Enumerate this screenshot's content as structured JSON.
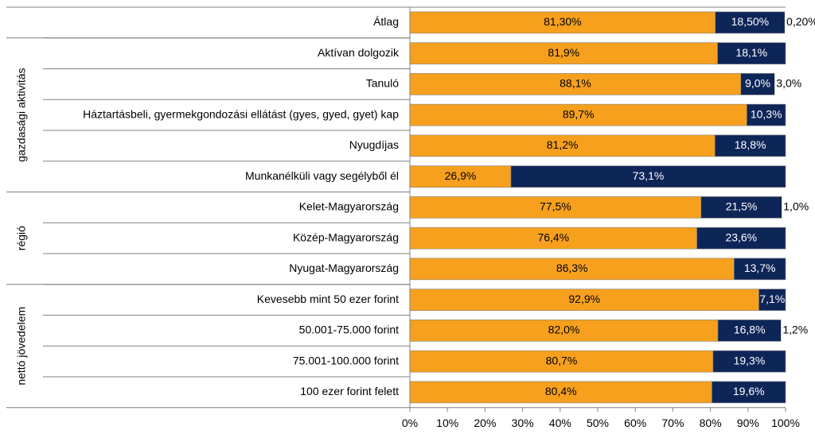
{
  "chart_data": {
    "type": "bar",
    "orientation": "horizontal",
    "stacked": true,
    "title": "",
    "xlabel": "",
    "ylabel": "",
    "xlim": [
      0,
      100
    ],
    "x_ticks": [
      "0%",
      "10%",
      "20%",
      "30%",
      "40%",
      "50%",
      "60%",
      "70%",
      "80%",
      "90%",
      "100%"
    ],
    "legend": "none",
    "grid": false,
    "groups": [
      {
        "label": "",
        "start": 0,
        "end": 0
      },
      {
        "label": "gazdasági aktivitás",
        "start": 1,
        "end": 5
      },
      {
        "label": "régió",
        "start": 6,
        "end": 8
      },
      {
        "label": "nettó jövedelem",
        "start": 9,
        "end": 12
      }
    ],
    "categories": [
      "Átlag",
      "Aktívan dolgozik",
      "Tanuló",
      "Háztartásbeli, gyermekgondozási ellátást (gyes, gyed, gyet) kap",
      "Nyugdíjas",
      "Munkanélküli vagy segélyből él",
      "Kelet-Magyarország",
      "Közép-Magyarország",
      "Nyugat-Magyarország",
      "Kevesebb mint 50 ezer forint",
      "50.001-75.000 forint",
      "75.001-100.000 forint",
      "100 ezer forint felett"
    ],
    "series": [
      {
        "color": "#F7A01E",
        "text_color": "#000000",
        "values": [
          81.3,
          81.9,
          88.1,
          89.7,
          81.2,
          26.9,
          77.5,
          76.4,
          86.3,
          92.9,
          82.0,
          80.7,
          80.4
        ],
        "labels": [
          "81,30%",
          "81,9%",
          "88,1%",
          "89,7%",
          "81,2%",
          "26,9%",
          "77,5%",
          "76,4%",
          "86,3%",
          "92,9%",
          "82,0%",
          "80,7%",
          "80,4%"
        ]
      },
      {
        "color": "#0E2558",
        "text_color": "#ffffff",
        "values": [
          18.5,
          18.1,
          9.0,
          10.3,
          18.8,
          73.1,
          21.5,
          23.6,
          13.7,
          7.1,
          16.8,
          19.3,
          19.6
        ],
        "labels": [
          "18,50%",
          "18,1%",
          "9,0%",
          "10,3%",
          "18,8%",
          "73,1%",
          "21,5%",
          "23,6%",
          "13,7%",
          "7,1%",
          "16,8%",
          "19,3%",
          "19,6%"
        ]
      },
      {
        "color": "#ffffff",
        "text_color": "#000000",
        "values": [
          0.2,
          0,
          3.0,
          0,
          0,
          0,
          1.0,
          0,
          0,
          0,
          1.2,
          0,
          0
        ],
        "labels": [
          "0,20%",
          "",
          "3,0%",
          "",
          "",
          "",
          "1,0%",
          "",
          "",
          "",
          "1,2%",
          "",
          ""
        ]
      }
    ]
  }
}
